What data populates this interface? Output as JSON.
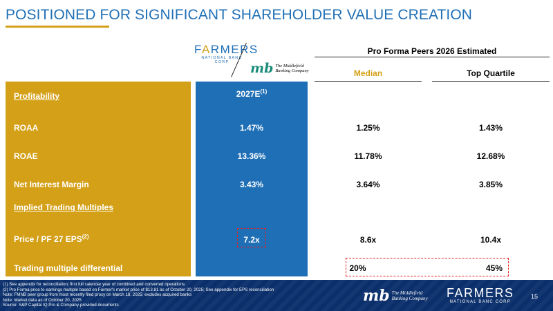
{
  "title": "POSITIONED FOR SIGNIFICANT SHAREHOLDER VALUE CREATION",
  "logos": {
    "farmers_word_pre": "F",
    "farmers_word_accent": "A",
    "farmers_word_post": "RMERS",
    "farmers_sub": "NATIONAL BANC CORP",
    "mb_mark": "mb",
    "mb_text_line1": "The Middlefield",
    "mb_text_line2": "Banking Company"
  },
  "peers": {
    "title": "Pro Forma Peers 2026 Estimated",
    "median_label": "Median",
    "top_quartile_label": "Top Quartile"
  },
  "table": {
    "section1_label": "Profitability",
    "col_header": "2027E",
    "col_header_sup": "(1)",
    "rows": [
      {
        "label": "ROAA",
        "pro_forma": "1.47%",
        "median": "1.25%",
        "top_quartile": "1.43%"
      },
      {
        "label": "ROAE",
        "pro_forma": "13.36%",
        "median": "11.78%",
        "top_quartile": "12.68%"
      },
      {
        "label": "Net Interest Margin",
        "pro_forma": "3.43%",
        "median": "3.64%",
        "top_quartile": "3.85%"
      }
    ],
    "section2_label": "Implied Trading Multiples",
    "price_row": {
      "label": "Price / PF 27 EPS",
      "label_sup": "(2)",
      "pro_forma": "7.2x",
      "median": "8.6x",
      "top_quartile": "10.4x"
    },
    "diff_row": {
      "label": "Trading multiple differential",
      "median": "20%",
      "top_quartile": "45%"
    }
  },
  "footer": {
    "notes": [
      "(1) See appendix for reconciliation; first full calendar year of combined and converted operations",
      "(2) Pro Forma price to earnings multiple based on Farmer's market price of $13.81 as of October 20, 2025; See appendix for EPS reconciliation",
      "Note: FMNB peer group from most recently filed proxy on March 18, 2025; excludes acquired banks",
      "Note: Market data as of October 20, 2025",
      "Source: S&P Capital IQ Pro & Company-provided documents"
    ],
    "page_number": "15"
  },
  "colors": {
    "brand_blue": "#1f6fb6",
    "brand_gold": "#d4a017",
    "footer_navy": "#0a2f6b",
    "highlight_red": "#e02020",
    "mb_green": "#1a8c7a"
  }
}
